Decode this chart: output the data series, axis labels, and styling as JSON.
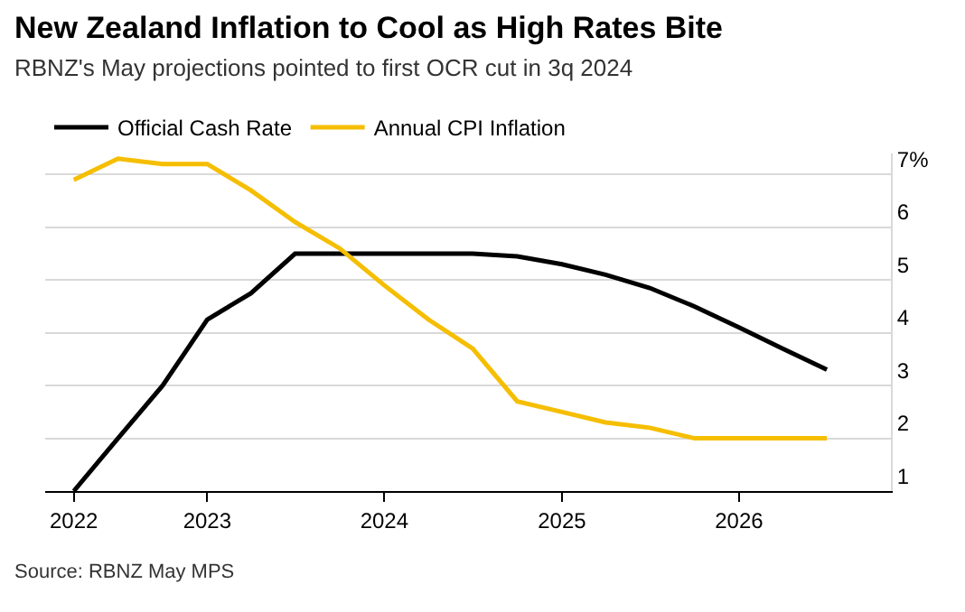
{
  "chart_data": {
    "type": "line",
    "title": "New Zealand Inflation to Cool as High Rates Bite",
    "subtitle": "RBNZ's May projections pointed to first OCR cut in 3q 2024",
    "x": [
      "2022-04-01",
      "2022-07-01",
      "2022-10-01",
      "2023-01-01",
      "2023-04-01",
      "2023-07-01",
      "2023-10-01",
      "2024-01-01",
      "2024-04-01",
      "2024-07-01",
      "2024-10-01",
      "2025-01-01",
      "2025-04-01",
      "2025-07-01",
      "2025-10-01",
      "2026-01-01",
      "2026-04-01",
      "2026-07-01"
    ],
    "series": [
      {
        "name": "Official Cash Rate",
        "color": "#000000",
        "values": [
          1.0,
          2.0,
          3.0,
          4.25,
          4.75,
          5.5,
          5.5,
          5.5,
          5.5,
          5.5,
          5.45,
          5.3,
          5.1,
          4.85,
          4.5,
          4.1,
          3.7,
          3.3
        ]
      },
      {
        "name": "Annual CPI Inflation",
        "color": "#f5be00",
        "values": [
          6.9,
          7.3,
          7.2,
          7.2,
          6.7,
          6.1,
          5.6,
          4.9,
          4.25,
          3.7,
          2.7,
          2.5,
          2.3,
          2.2,
          2.0,
          2.0,
          2.0,
          2.0
        ]
      }
    ],
    "xlim": [
      "2022-02-01",
      "2026-11-10"
    ],
    "xticks": [
      {
        "value": "2022-04-01",
        "label": "2022"
      },
      {
        "value": "2023-01-01",
        "label": "2023"
      },
      {
        "value": "2024-01-01",
        "label": "2024"
      },
      {
        "value": "2025-01-01",
        "label": "2025"
      },
      {
        "value": "2026-01-01",
        "label": "2026"
      }
    ],
    "ylim": [
      1,
      7.4
    ],
    "yticks": [
      1,
      2,
      3,
      4,
      5,
      6,
      {
        "value": 7,
        "label": "7%"
      }
    ],
    "grid": "y",
    "legend": "top left",
    "marker": "none",
    "line_style": "solid",
    "annotations": [
      "Source: RBNZ May MPS"
    ]
  }
}
